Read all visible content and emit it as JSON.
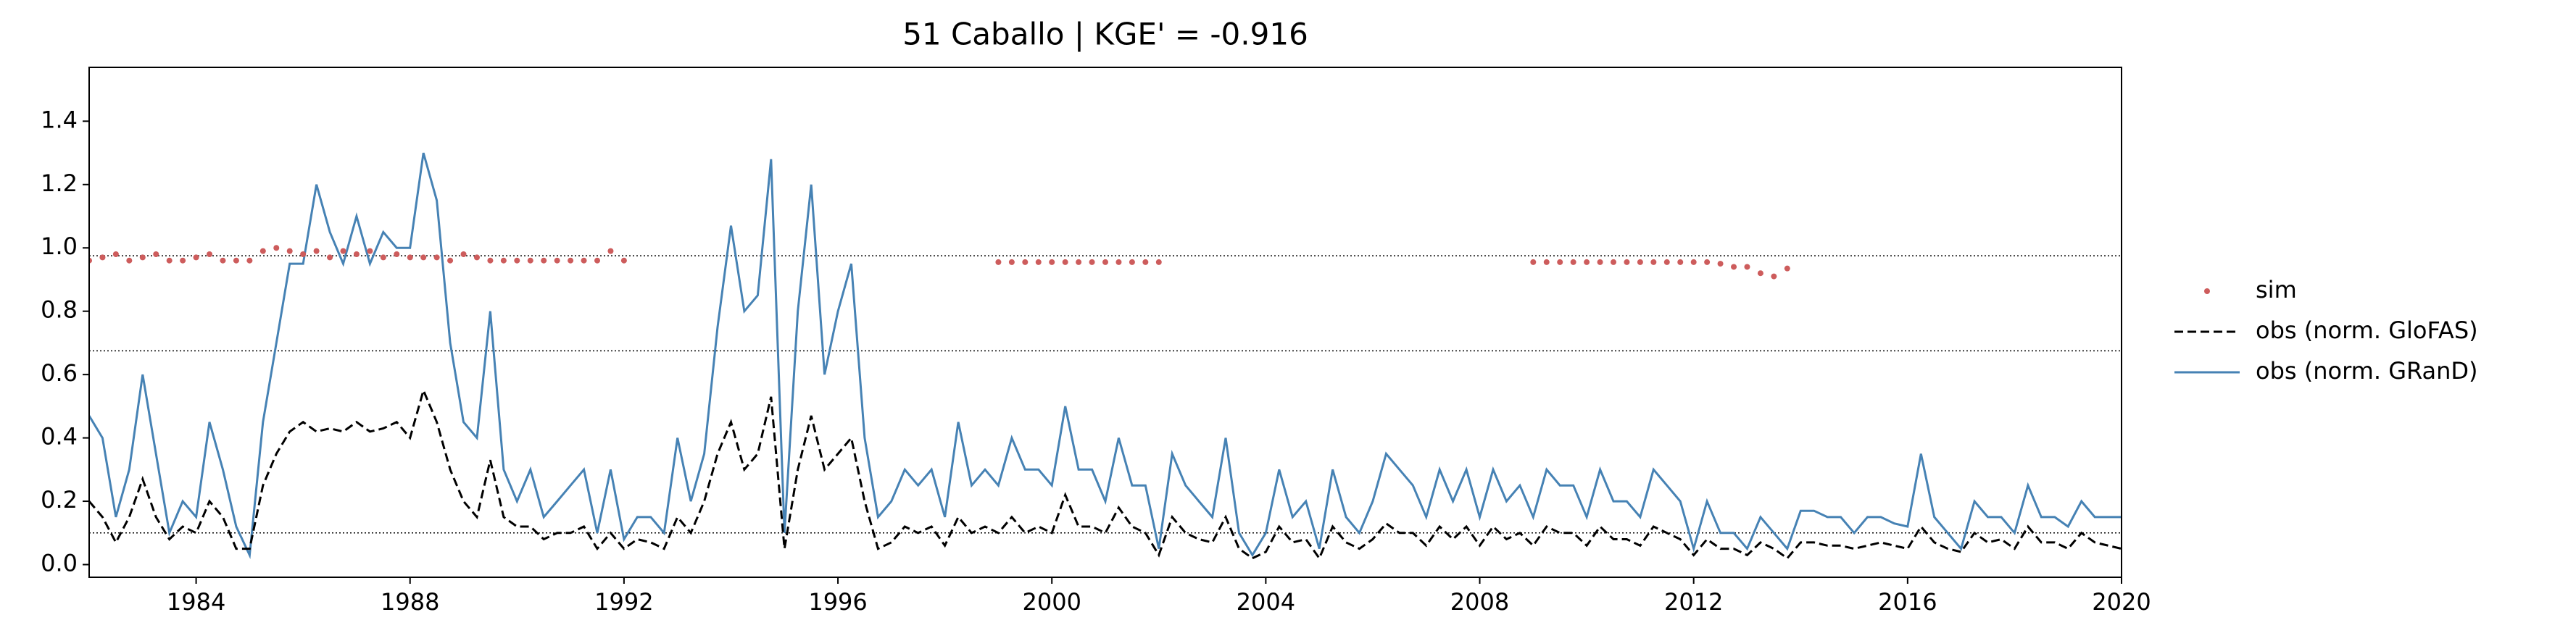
{
  "chart_data": {
    "type": "line",
    "title": "51  Caballo | KGE' = -0.916",
    "xlim": [
      1982,
      2020
    ],
    "xticks": [
      1984,
      1988,
      1992,
      1996,
      2000,
      2004,
      2008,
      2012,
      2016,
      2020
    ],
    "ylim": [
      -0.04,
      1.57
    ],
    "yticks": [
      {
        "value": 0,
        "label": "0.0"
      },
      0.2,
      0.4,
      0.6,
      0.8,
      {
        "value": 1,
        "label": "1.0"
      },
      1.2,
      1.4
    ],
    "hlines": [
      0.975,
      0.675,
      0.1
    ],
    "legend": "outside-right",
    "x": [
      1982,
      1982.25,
      1982.5,
      1982.75,
      1983,
      1983.25,
      1983.5,
      1983.75,
      1984,
      1984.25,
      1984.5,
      1984.75,
      1985,
      1985.25,
      1985.5,
      1985.75,
      1986,
      1986.25,
      1986.5,
      1986.75,
      1987,
      1987.25,
      1987.5,
      1987.75,
      1988,
      1988.25,
      1988.5,
      1988.75,
      1989,
      1989.25,
      1989.5,
      1989.75,
      1990,
      1990.25,
      1990.5,
      1990.75,
      1991,
      1991.25,
      1991.5,
      1991.75,
      1992,
      1992.25,
      1992.5,
      1992.75,
      1993,
      1993.25,
      1993.5,
      1993.75,
      1994,
      1994.25,
      1994.5,
      1994.75,
      1995,
      1995.25,
      1995.5,
      1995.75,
      1996,
      1996.25,
      1996.5,
      1996.75,
      1997,
      1997.25,
      1997.5,
      1997.75,
      1998,
      1998.25,
      1998.5,
      1998.75,
      1999,
      1999.25,
      1999.5,
      1999.75,
      2000,
      2000.25,
      2000.5,
      2000.75,
      2001,
      2001.25,
      2001.5,
      2001.75,
      2002,
      2002.25,
      2002.5,
      2002.75,
      2003,
      2003.25,
      2003.5,
      2003.75,
      2004,
      2004.25,
      2004.5,
      2004.75,
      2005,
      2005.25,
      2005.5,
      2005.75,
      2006,
      2006.25,
      2006.5,
      2006.75,
      2007,
      2007.25,
      2007.5,
      2007.75,
      2008,
      2008.25,
      2008.5,
      2008.75,
      2009,
      2009.25,
      2009.5,
      2009.75,
      2010,
      2010.25,
      2010.5,
      2010.75,
      2011,
      2011.25,
      2011.5,
      2011.75,
      2012,
      2012.25,
      2012.5,
      2012.75,
      2013,
      2013.25,
      2013.5,
      2013.75,
      2014,
      2014.25,
      2014.5,
      2014.75,
      2015,
      2015.25,
      2015.5,
      2015.75,
      2016,
      2016.25,
      2016.5,
      2016.75,
      2017,
      2017.25,
      2017.5,
      2017.75,
      2018,
      2018.25,
      2018.5,
      2018.75,
      2019,
      2019.25,
      2019.5,
      2019.75,
      2020
    ],
    "series": [
      {
        "name": "sim",
        "color": "#cd5c5c",
        "style": "dots",
        "values": [
          0.96,
          0.97,
          0.98,
          0.96,
          0.97,
          0.98,
          0.96,
          0.96,
          0.97,
          0.98,
          0.96,
          0.96,
          0.96,
          0.99,
          1.0,
          0.99,
          0.98,
          0.99,
          0.97,
          0.99,
          0.98,
          0.99,
          0.97,
          0.98,
          0.97,
          0.97,
          0.97,
          0.96,
          0.98,
          0.97,
          0.96,
          0.96,
          0.96,
          0.96,
          0.96,
          0.96,
          0.96,
          0.96,
          0.96,
          0.99,
          0.96,
          null,
          null,
          null,
          null,
          null,
          null,
          null,
          null,
          null,
          null,
          null,
          null,
          null,
          null,
          null,
          null,
          null,
          null,
          null,
          null,
          null,
          null,
          null,
          null,
          null,
          null,
          null,
          0.955,
          0.955,
          0.955,
          0.955,
          0.955,
          0.955,
          0.955,
          0.955,
          0.955,
          0.955,
          0.955,
          0.955,
          0.955,
          null,
          null,
          null,
          null,
          null,
          null,
          null,
          null,
          null,
          null,
          null,
          null,
          null,
          null,
          null,
          null,
          null,
          null,
          null,
          null,
          null,
          null,
          null,
          null,
          null,
          null,
          null,
          0.955,
          0.955,
          0.955,
          0.955,
          0.955,
          0.955,
          0.955,
          0.955,
          0.955,
          0.955,
          0.955,
          0.955,
          0.955,
          0.955,
          0.95,
          0.94,
          0.94,
          0.92,
          0.91,
          0.935,
          null,
          null,
          null,
          null,
          null,
          null,
          null,
          null,
          null,
          null,
          null,
          null,
          null,
          null,
          null,
          null,
          null,
          null,
          null,
          null,
          null,
          null,
          null,
          null,
          null
        ]
      },
      {
        "name": "obs (norm. GloFAS)",
        "color": "#000000",
        "style": "dashed",
        "values": [
          0.2,
          0.15,
          0.07,
          0.15,
          0.27,
          0.15,
          0.08,
          0.12,
          0.1,
          0.2,
          0.15,
          0.05,
          0.05,
          0.25,
          0.35,
          0.42,
          0.45,
          0.42,
          0.43,
          0.42,
          0.45,
          0.42,
          0.43,
          0.45,
          0.4,
          0.55,
          0.45,
          0.3,
          0.2,
          0.15,
          0.33,
          0.15,
          0.12,
          0.12,
          0.08,
          0.1,
          0.1,
          0.12,
          0.05,
          0.1,
          0.05,
          0.08,
          0.07,
          0.05,
          0.15,
          0.1,
          0.2,
          0.35,
          0.45,
          0.3,
          0.35,
          0.53,
          0.05,
          0.3,
          0.47,
          0.3,
          0.35,
          0.4,
          0.2,
          0.05,
          0.07,
          0.12,
          0.1,
          0.12,
          0.06,
          0.15,
          0.1,
          0.12,
          0.1,
          0.15,
          0.1,
          0.12,
          0.1,
          0.22,
          0.12,
          0.12,
          0.1,
          0.18,
          0.12,
          0.1,
          0.03,
          0.15,
          0.1,
          0.08,
          0.07,
          0.15,
          0.05,
          0.02,
          0.04,
          0.12,
          0.07,
          0.08,
          0.02,
          0.12,
          0.07,
          0.05,
          0.08,
          0.13,
          0.1,
          0.1,
          0.06,
          0.12,
          0.08,
          0.12,
          0.06,
          0.12,
          0.08,
          0.1,
          0.06,
          0.12,
          0.1,
          0.1,
          0.06,
          0.12,
          0.08,
          0.08,
          0.06,
          0.12,
          0.1,
          0.08,
          0.03,
          0.08,
          0.05,
          0.05,
          0.03,
          0.07,
          0.05,
          0.02,
          0.07,
          0.07,
          0.06,
          0.06,
          0.05,
          0.06,
          0.07,
          0.06,
          0.05,
          0.12,
          0.07,
          0.05,
          0.04,
          0.1,
          0.07,
          0.08,
          0.05,
          0.12,
          0.07,
          0.07,
          0.05,
          0.1,
          0.07,
          0.06,
          0.05
        ]
      },
      {
        "name": "obs (norm. GRanD)",
        "color": "#4682b4",
        "style": "solid",
        "values": [
          0.47,
          0.4,
          0.15,
          0.3,
          0.6,
          0.35,
          0.1,
          0.2,
          0.15,
          0.45,
          0.3,
          0.12,
          0.03,
          0.45,
          0.7,
          0.95,
          0.95,
          1.2,
          1.05,
          0.95,
          1.1,
          0.95,
          1.05,
          1.0,
          1.0,
          1.3,
          1.15,
          0.7,
          0.45,
          0.4,
          0.8,
          0.3,
          0.2,
          0.3,
          0.15,
          0.2,
          0.25,
          0.3,
          0.1,
          0.3,
          0.08,
          0.15,
          0.15,
          0.1,
          0.4,
          0.2,
          0.35,
          0.75,
          1.07,
          0.8,
          0.85,
          1.28,
          0.1,
          0.8,
          1.2,
          0.6,
          0.8,
          0.95,
          0.4,
          0.15,
          0.2,
          0.3,
          0.25,
          0.3,
          0.15,
          0.45,
          0.25,
          0.3,
          0.25,
          0.4,
          0.3,
          0.3,
          0.25,
          0.5,
          0.3,
          0.3,
          0.2,
          0.4,
          0.25,
          0.25,
          0.05,
          0.35,
          0.25,
          0.2,
          0.15,
          0.4,
          0.1,
          0.03,
          0.1,
          0.3,
          0.15,
          0.2,
          0.05,
          0.3,
          0.15,
          0.1,
          0.2,
          0.35,
          0.3,
          0.25,
          0.15,
          0.3,
          0.2,
          0.3,
          0.15,
          0.3,
          0.2,
          0.25,
          0.15,
          0.3,
          0.25,
          0.25,
          0.15,
          0.3,
          0.2,
          0.2,
          0.15,
          0.3,
          0.25,
          0.2,
          0.05,
          0.2,
          0.1,
          0.1,
          0.05,
          0.15,
          0.1,
          0.05,
          0.17,
          0.17,
          0.15,
          0.15,
          0.1,
          0.15,
          0.15,
          0.13,
          0.12,
          0.35,
          0.15,
          0.1,
          0.05,
          0.2,
          0.15,
          0.15,
          0.1,
          0.25,
          0.15,
          0.15,
          0.12,
          0.2,
          0.15,
          0.15,
          0.15
        ]
      }
    ]
  }
}
